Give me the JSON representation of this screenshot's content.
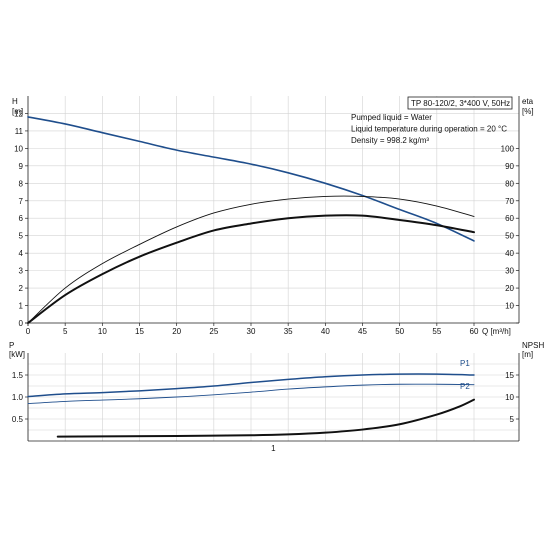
{
  "chart_data": [
    {
      "type": "line",
      "panel": "head-efficiency",
      "title": "TP 80-120/2, 3*400 V, 50Hz",
      "notes": [
        "Pumped liquid = Water",
        "Liquid temperature during operation = 20 °C",
        "Density = 998.2 kg/m³"
      ],
      "xlabel": "Q [m³/h]",
      "ylabel_left": [
        "H",
        "[m]"
      ],
      "ylabel_right": [
        "eta",
        "[%]"
      ],
      "xlim": [
        0,
        60
      ],
      "ylim_left": [
        0,
        13
      ],
      "ylim_right": [
        0,
        130
      ],
      "xticks": [
        0,
        5,
        10,
        15,
        20,
        25,
        30,
        35,
        40,
        45,
        50,
        55,
        60
      ],
      "yticks_left": [
        0,
        1,
        2,
        3,
        4,
        5,
        6,
        7,
        8,
        9,
        10,
        11,
        12
      ],
      "yticks_right": [
        0,
        10,
        20,
        30,
        40,
        50,
        60,
        70,
        80,
        90,
        100
      ],
      "grid": true,
      "series": [
        {
          "color": "#1f4e8c",
          "width": 1.6,
          "axis": "left",
          "x": [
            0,
            5,
            10,
            15,
            20,
            25,
            30,
            35,
            40,
            45,
            50,
            55,
            60
          ],
          "y": [
            11.8,
            11.4,
            10.9,
            10.4,
            9.9,
            9.5,
            9.1,
            8.6,
            8.0,
            7.3,
            6.5,
            5.7,
            4.7
          ]
        },
        {
          "color": "#111111",
          "width": 0.9,
          "axis": "right",
          "x": [
            0,
            5,
            10,
            15,
            20,
            25,
            30,
            35,
            40,
            45,
            50,
            55,
            60
          ],
          "y": [
            0,
            20,
            34,
            45,
            55,
            63,
            68,
            71,
            72.5,
            72.5,
            71,
            67,
            61
          ]
        },
        {
          "color": "#111111",
          "width": 2.0,
          "axis": "right",
          "x": [
            0,
            5,
            10,
            15,
            20,
            25,
            30,
            35,
            40,
            45,
            50,
            55,
            60
          ],
          "y": [
            0,
            16,
            28,
            38,
            46,
            53,
            57,
            60,
            61.5,
            61.5,
            59,
            56,
            52
          ]
        }
      ]
    },
    {
      "type": "line",
      "panel": "power-npsh",
      "ylabel_left": [
        "P",
        "[kW]"
      ],
      "ylabel_right": [
        "NPSH",
        "[m]"
      ],
      "xlim": [
        0,
        60
      ],
      "ylim_left": [
        0,
        2.0
      ],
      "ylim_right": [
        0,
        20
      ],
      "yticks_left": [
        "0.5",
        "1.0",
        "1.5"
      ],
      "yticks_left_values": [
        0.5,
        1.0,
        1.5
      ],
      "yticks_right": [
        5,
        10,
        15
      ],
      "bottom_label": "1",
      "grid": true,
      "series": [
        {
          "name": "P1",
          "color": "#1f4e8c",
          "width": 1.5,
          "axis": "left",
          "x": [
            0,
            5,
            10,
            15,
            20,
            25,
            30,
            35,
            40,
            45,
            50,
            55,
            60
          ],
          "y": [
            1.01,
            1.07,
            1.1,
            1.14,
            1.19,
            1.25,
            1.33,
            1.4,
            1.46,
            1.5,
            1.52,
            1.52,
            1.5
          ]
        },
        {
          "name": "P2",
          "color": "#1f4e8c",
          "width": 0.9,
          "axis": "left",
          "x": [
            0,
            5,
            10,
            15,
            20,
            25,
            30,
            35,
            40,
            45,
            50,
            55,
            60
          ],
          "y": [
            0.85,
            0.9,
            0.93,
            0.96,
            1.0,
            1.05,
            1.11,
            1.18,
            1.23,
            1.27,
            1.29,
            1.29,
            1.28
          ]
        },
        {
          "color": "#111111",
          "width": 2.0,
          "axis": "right",
          "x": [
            4,
            10,
            20,
            30,
            35,
            40,
            45,
            50,
            55,
            58,
            60
          ],
          "y": [
            1.0,
            1.05,
            1.15,
            1.3,
            1.5,
            1.9,
            2.6,
            3.8,
            6.0,
            7.8,
            9.4
          ]
        }
      ]
    }
  ]
}
